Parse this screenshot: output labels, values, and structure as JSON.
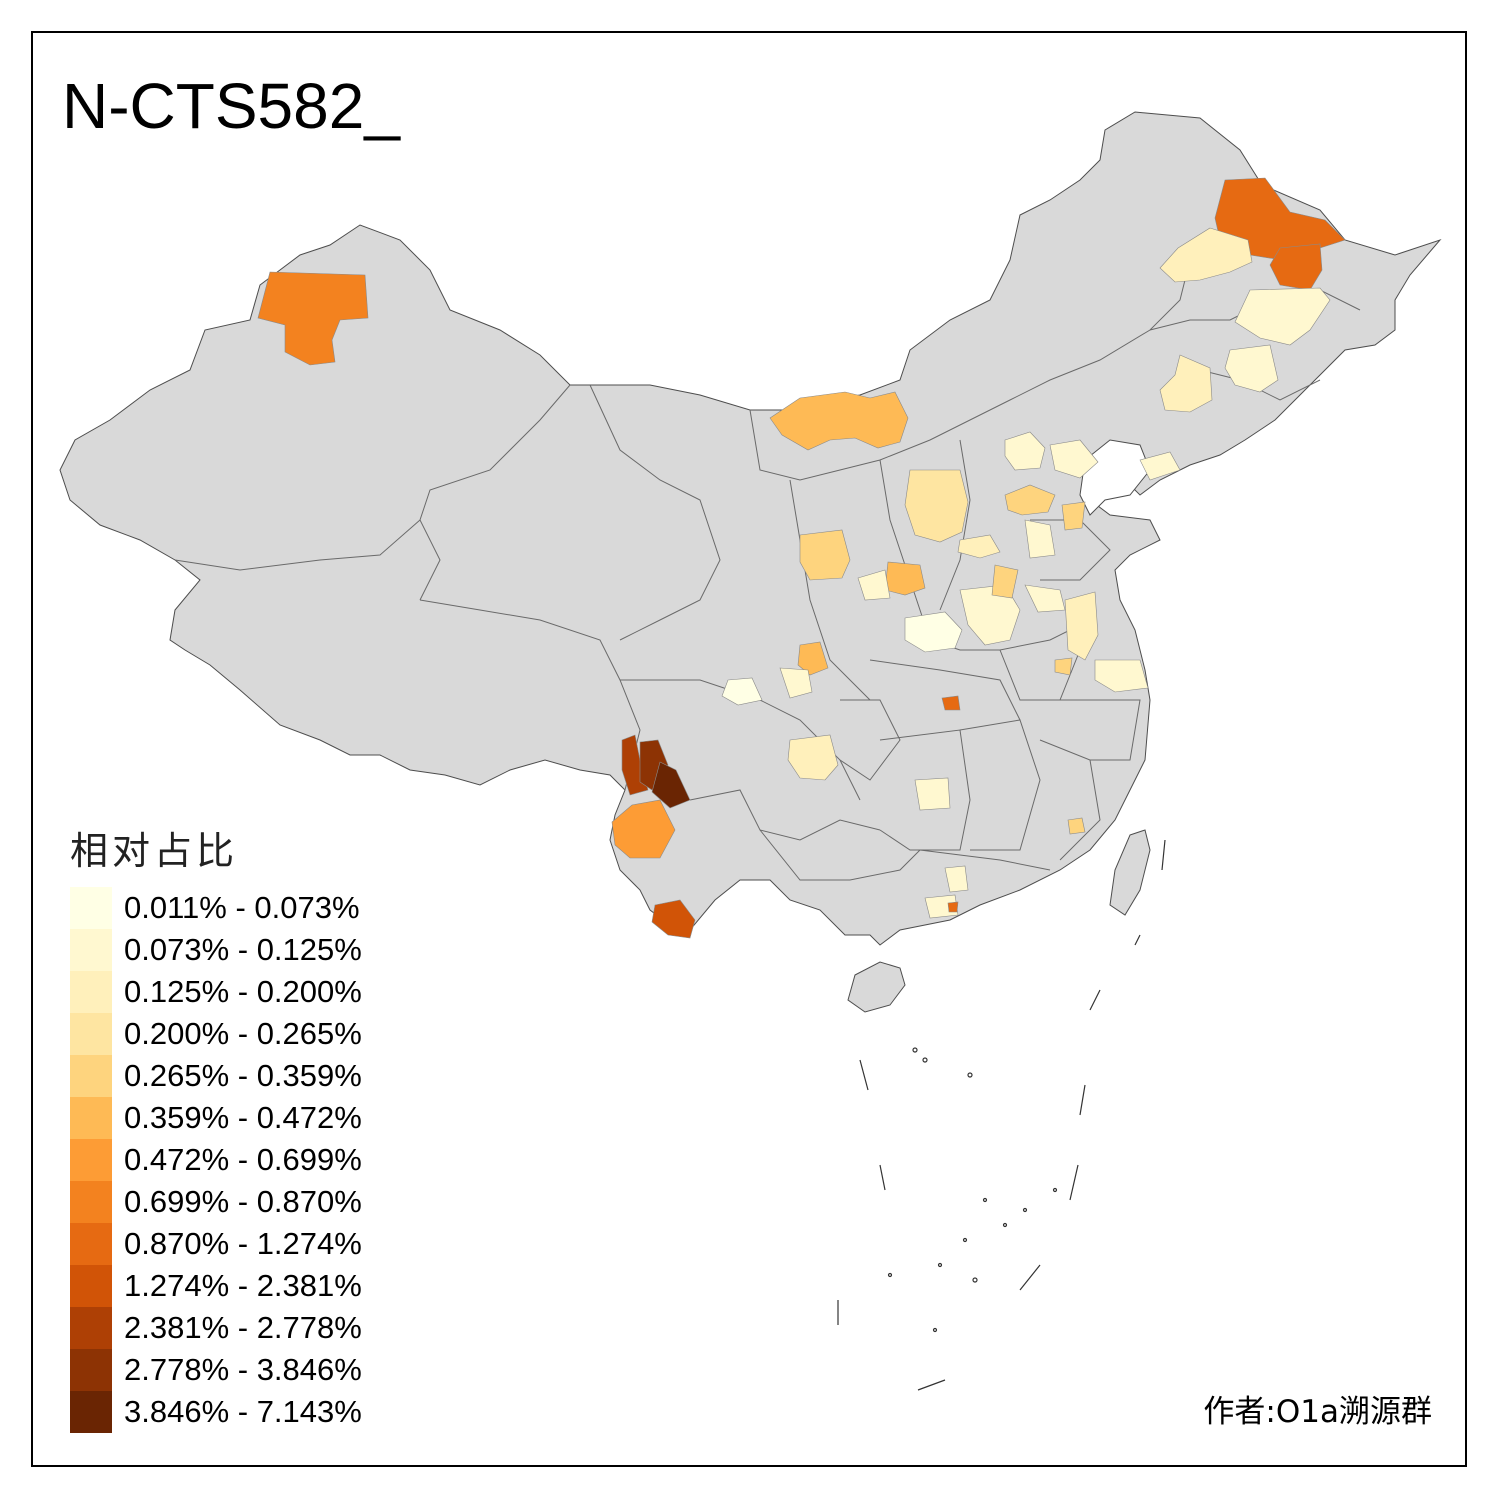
{
  "title": "N-CTS582_",
  "legend": {
    "title": "相对占比",
    "items": [
      {
        "label": "0.011% - 0.073%",
        "color": "#ffffe5"
      },
      {
        "label": "0.073% - 0.125%",
        "color": "#fff8d0"
      },
      {
        "label": "0.125% - 0.200%",
        "color": "#fff0bb"
      },
      {
        "label": "0.200% - 0.265%",
        "color": "#fee5a1"
      },
      {
        "label": "0.265% - 0.359%",
        "color": "#fed47e"
      },
      {
        "label": "0.359% - 0.472%",
        "color": "#feba55"
      },
      {
        "label": "0.472% - 0.699%",
        "color": "#fd9c35"
      },
      {
        "label": "0.699% - 0.870%",
        "color": "#f3821f"
      },
      {
        "label": "0.870% - 1.274%",
        "color": "#e66a12"
      },
      {
        "label": "1.274% - 2.381%",
        "color": "#d15407"
      },
      {
        "label": "2.381% - 2.778%",
        "color": "#ae4005"
      },
      {
        "label": "2.778% - 3.846%",
        "color": "#8d3304"
      },
      {
        "label": "3.846% - 7.143%",
        "color": "#6a2503"
      }
    ]
  },
  "credit": "作者:O1a溯源群",
  "map": {
    "base_color": "#d9d9d9",
    "border_color": "#4d4d4d",
    "highlighted_regions": [
      {
        "name": "xinjiang-north",
        "bin": 7
      },
      {
        "name": "heilongjiang-north",
        "bin": 8
      },
      {
        "name": "heilongjiang-east",
        "bin": 8
      },
      {
        "name": "heilongjiang-west",
        "bin": 2
      },
      {
        "name": "jilin-central",
        "bin": 1
      },
      {
        "name": "inner-mongolia-central",
        "bin": 5
      },
      {
        "name": "yunnan-northwest-1",
        "bin": 10
      },
      {
        "name": "yunnan-northwest-2",
        "bin": 11
      },
      {
        "name": "yunnan-northwest-3",
        "bin": 12
      },
      {
        "name": "yunnan-west",
        "bin": 6
      },
      {
        "name": "yunnan-south",
        "bin": 9
      },
      {
        "name": "shanxi-central",
        "bin": 3
      },
      {
        "name": "hebei-central",
        "bin": 4
      },
      {
        "name": "shaanxi-north",
        "bin": 4
      },
      {
        "name": "shaanxi-south",
        "bin": 5
      },
      {
        "name": "henan-central",
        "bin": 0
      },
      {
        "name": "sichuan-east",
        "bin": 2
      },
      {
        "name": "guangdong-south",
        "bin": 1
      },
      {
        "name": "hubei-west",
        "bin": 8
      },
      {
        "name": "fujian-south",
        "bin": 4
      }
    ]
  }
}
